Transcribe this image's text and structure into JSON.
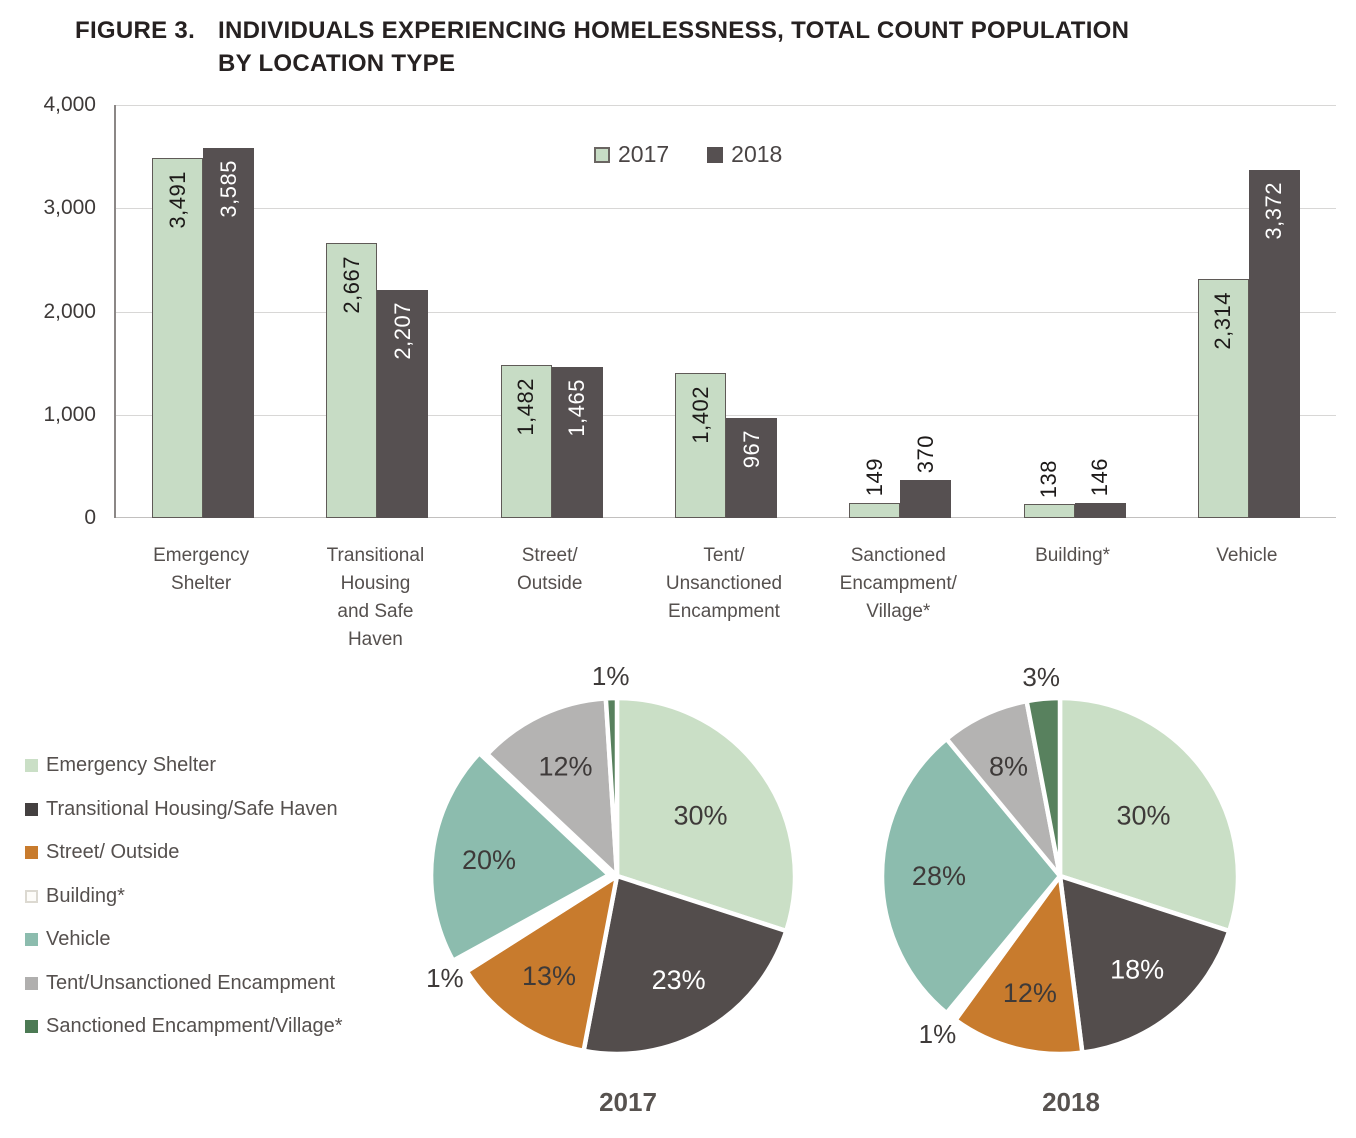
{
  "figure": {
    "label": "FIGURE 3.",
    "title": "INDIVIDUALS EXPERIENCING HOMELESSNESS, TOTAL COUNT POPULATION BY LOCATION TYPE"
  },
  "colors": {
    "green_2017": "#c7dcc5",
    "dark_2018": "#565051",
    "orange": "#c87b2d",
    "teal": "#8cbcae",
    "gray": "#b4b3b2",
    "dark_green": "#58815e",
    "white": "#ffffff",
    "grid": "#d8d7d6",
    "text": "#55504e"
  },
  "chart_data": [
    {
      "type": "bar",
      "legend": [
        "2017",
        "2018"
      ],
      "legend_position": "top-center",
      "grid": true,
      "ylim": [
        0,
        4000
      ],
      "yticks": [
        0,
        1000,
        2000,
        3000,
        4000
      ],
      "categories": [
        "Emergency\nShelter",
        "Transitional\nHousing\nand Safe\nHaven",
        "Street/\nOutside",
        "Tent/\nUnsanctioned\nEncampment",
        "Sanctioned\nEncampment/\nVillage*",
        "Building*",
        "Vehicle"
      ],
      "series": [
        {
          "name": "2017",
          "color": "#c7dcc5",
          "values": [
            3491,
            2667,
            1482,
            1402,
            149,
            138,
            2314
          ]
        },
        {
          "name": "2018",
          "color": "#565051",
          "values": [
            3585,
            2207,
            1465,
            967,
            370,
            146,
            3372
          ]
        }
      ]
    },
    {
      "type": "pie",
      "title": "2017",
      "labels": [
        "Emergency Shelter",
        "Transitional Housing/Safe Haven",
        "Street/ Outside",
        "Building*",
        "Vehicle",
        "Tent/Unsanctioned Encampment",
        "Sanctioned Encampment/Village*"
      ],
      "values": [
        30,
        23,
        13,
        1,
        20,
        12,
        1
      ],
      "colors": [
        "#cadfc6",
        "#534d4c",
        "#c87b2d",
        "#ffffff",
        "#8cbcae",
        "#b4b3b2",
        "#58815e"
      ],
      "exploded_slice": "Vehicle"
    },
    {
      "type": "pie",
      "title": "2018",
      "labels": [
        "Emergency Shelter",
        "Transitional Housing/Safe Haven",
        "Street/ Outside",
        "Building*",
        "Vehicle",
        "Tent/Unsanctioned Encampment",
        "Sanctioned Encampment/Village*"
      ],
      "values": [
        30,
        18,
        12,
        1,
        28,
        8,
        3
      ],
      "colors": [
        "#cadfc6",
        "#534d4c",
        "#c87b2d",
        "#ffffff",
        "#8cbcae",
        "#b4b3b2",
        "#58815e"
      ],
      "exploded_slice": null
    }
  ],
  "pie_legend": {
    "items": [
      {
        "label": "Emergency Shelter",
        "color": "#cadfc6"
      },
      {
        "label": "Transitional Housing/Safe Haven",
        "color": "#444040"
      },
      {
        "label": "Street/ Outside",
        "color": "#c87b2d"
      },
      {
        "label": "Building*",
        "color": "#ffffff"
      },
      {
        "label": "Vehicle",
        "color": "#8cbcae"
      },
      {
        "label": "Tent/Unsanctioned Encampment",
        "color": "#b0afae"
      },
      {
        "label": "Sanctioned Encampment/Village*",
        "color": "#4c7a54"
      }
    ]
  }
}
